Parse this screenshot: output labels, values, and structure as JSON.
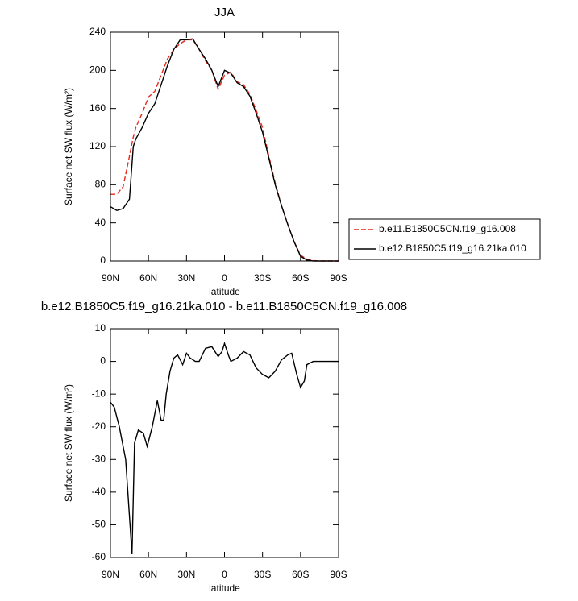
{
  "chart_data": [
    {
      "type": "line",
      "title": "JJA",
      "xlabel": "latitude",
      "ylabel": "Surface net SW flux (W/m²)",
      "x": [
        90,
        85,
        80,
        75,
        72,
        70,
        65,
        60,
        55,
        50,
        45,
        40,
        35,
        30,
        25,
        20,
        15,
        10,
        5,
        0,
        -5,
        -10,
        -15,
        -20,
        -25,
        -30,
        -35,
        -40,
        -45,
        -50,
        -55,
        -60,
        -65,
        -70,
        -75,
        -80,
        -85,
        -90
      ],
      "series": [
        {
          "name": "b.e11.B1850C5CN.f19_g16.008",
          "color": "#e8291c",
          "line_style": "dashed",
          "values": [
            70,
            70,
            78,
            110,
            130,
            140,
            155,
            172,
            178,
            195,
            212,
            222,
            228,
            232,
            232,
            222,
            210,
            200,
            180,
            195,
            198,
            188,
            185,
            175,
            158,
            140,
            110,
            82,
            58,
            38,
            20,
            6,
            2,
            0.5,
            0,
            0,
            0,
            0
          ]
        },
        {
          "name": "b.e12.B1850C5.f19_g16.21ka.010",
          "color": "#000000",
          "line_style": "solid",
          "values": [
            57,
            53,
            55,
            65,
            120,
            128,
            140,
            155,
            165,
            185,
            205,
            222,
            232,
            232,
            233,
            222,
            212,
            200,
            183,
            200,
            197,
            187,
            183,
            173,
            155,
            135,
            108,
            80,
            58,
            38,
            20,
            5,
            1,
            0,
            0,
            0,
            0,
            0
          ]
        }
      ],
      "xlim": [
        90,
        -90
      ],
      "ylim": [
        0,
        240
      ],
      "xticks": [
        {
          "value": 90,
          "label": "90N"
        },
        {
          "value": 60,
          "label": "60N"
        },
        {
          "value": 30,
          "label": "30N"
        },
        0,
        {
          "value": -30,
          "label": "30S"
        },
        {
          "value": -60,
          "label": "60S"
        },
        {
          "value": -90,
          "label": "90S"
        }
      ],
      "yticks": [
        0,
        40,
        80,
        120,
        160,
        200,
        240
      ],
      "legend_position": "right"
    },
    {
      "type": "line",
      "title": "b.e12.B1850C5.f19_g16.21ka.010 - b.e11.B1850C5CN.f19_g16.008",
      "xlabel": "latitude",
      "ylabel": "Surface net SW flux (W/m²)",
      "x": [
        90,
        87,
        83,
        78,
        73,
        71,
        68,
        64,
        61,
        57,
        53,
        50,
        48,
        46,
        43,
        40,
        37,
        33,
        30,
        27,
        23,
        20,
        15,
        10,
        5,
        2,
        0,
        -3,
        -5,
        -10,
        -15,
        -20,
        -25,
        -30,
        -35,
        -40,
        -45,
        -50,
        -53,
        -57,
        -60,
        -63,
        -65,
        -70,
        -75,
        -90
      ],
      "series": [
        {
          "color": "#000000",
          "line_style": "solid",
          "values": [
            -12.5,
            -14,
            -20,
            -30,
            -59,
            -25,
            -21,
            -22,
            -26,
            -20,
            -12,
            -18,
            -18,
            -10,
            -3,
            1,
            2,
            -1,
            2.5,
            1,
            0,
            0,
            4,
            4.5,
            1.5,
            3,
            5.5,
            2,
            0,
            1,
            3,
            2,
            -2,
            -4,
            -5,
            -3,
            0.5,
            2,
            2.5,
            -4,
            -8,
            -6,
            -1,
            0,
            0,
            0
          ]
        }
      ],
      "xlim": [
        90,
        -90
      ],
      "ylim": [
        -60,
        10
      ],
      "xticks": [
        {
          "value": 90,
          "label": "90N"
        },
        {
          "value": 60,
          "label": "60N"
        },
        {
          "value": 30,
          "label": "30N"
        },
        0,
        {
          "value": -30,
          "label": "30S"
        },
        {
          "value": -60,
          "label": "60S"
        },
        {
          "value": -90,
          "label": "90S"
        }
      ],
      "yticks": [
        10,
        0,
        -10,
        -20,
        -30,
        -40,
        -50,
        -60
      ]
    }
  ]
}
